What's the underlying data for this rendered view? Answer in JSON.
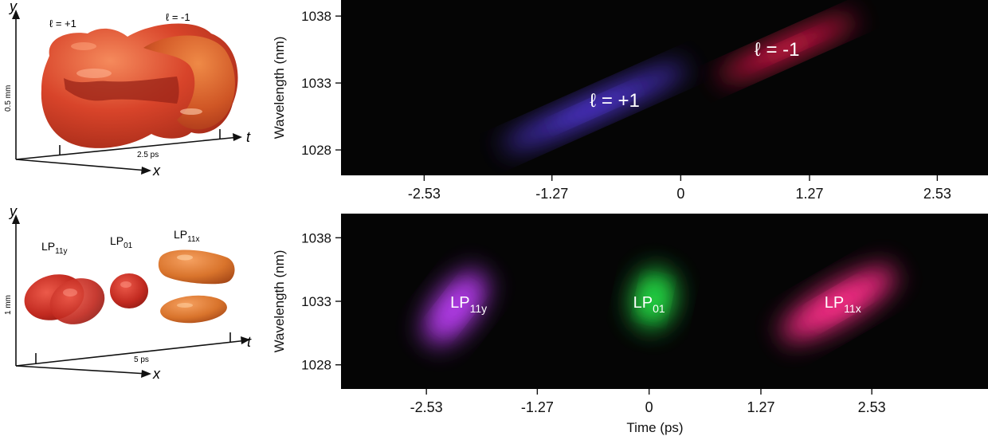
{
  "schematic_top": {
    "axis_y": "y",
    "axis_t": "t",
    "axis_x": "x",
    "mode_plus": "ℓ = +1",
    "mode_minus": "ℓ = -1",
    "scale_vertical": "0.5 mm",
    "scale_time": "2.5 ps",
    "colors": {
      "body": "#d8442a",
      "highlight": "#f07a4a",
      "shadow": "#9c2416"
    }
  },
  "schematic_bottom": {
    "axis_y": "y",
    "axis_t": "t",
    "axis_x": "x",
    "mode_a": {
      "base": "LP",
      "sub": "11y"
    },
    "mode_b": {
      "base": "LP",
      "sub": "01"
    },
    "mode_c": {
      "base": "LP",
      "sub": "11x"
    },
    "scale_vertical": "1 mm",
    "scale_time": "5 ps",
    "colors": {
      "red_blob": "#c22a20",
      "orange_blob": "#d9742c"
    }
  },
  "chart_data": [
    {
      "type": "heatmap",
      "title": "",
      "xlabel": "",
      "ylabel": "Wavelength (nm)",
      "x_ticks": [
        -2.53,
        -1.27,
        0,
        1.27,
        2.53
      ],
      "x_tick_labels": [
        "-2.53",
        "-1.27",
        "0",
        "1.27",
        "2.53"
      ],
      "y_ticks": [
        1028,
        1033,
        1038
      ],
      "y_tick_labels": [
        "1028",
        "1033",
        "1038"
      ],
      "xlim": [
        -3.35,
        3.03
      ],
      "ylim": [
        1026.1,
        1039.2
      ],
      "annotations": [
        {
          "text": "ℓ = +1",
          "x": -0.65,
          "y": 1031.7,
          "color": "#ffffff"
        },
        {
          "text": "ℓ = -1",
          "x": 0.95,
          "y": 1035.5,
          "color": "#ffffff"
        }
      ],
      "blobs": [
        {
          "name": "ℓ = +1",
          "color": "#5a3cf0",
          "center": [
            -0.85,
            1031.2
          ],
          "spread": [
            1.6,
            1.5
          ]
        },
        {
          "name": "ℓ = -1",
          "color": "#ff1f55",
          "center": [
            1.05,
            1035.6
          ],
          "spread": [
            1.2,
            1.3
          ]
        }
      ]
    },
    {
      "type": "heatmap",
      "title": "",
      "xlabel": "Time (ps)",
      "ylabel": "Wavelength (nm)",
      "x_ticks": [
        -2.53,
        -1.27,
        0,
        1.27,
        2.53
      ],
      "x_tick_labels": [
        "-2.53",
        "-1.27",
        "0",
        "1.27",
        "2.53"
      ],
      "y_ticks": [
        1028,
        1033,
        1038
      ],
      "y_tick_labels": [
        "1028",
        "1033",
        "1038"
      ],
      "xlim": [
        -3.5,
        3.85
      ],
      "ylim": [
        1026.1,
        1039.9
      ],
      "annotations": [
        {
          "base": "LP",
          "sub": "11y",
          "x": -2.05,
          "y": 1033.0,
          "color": "#ffffff"
        },
        {
          "base": "LP",
          "sub": "01",
          "x": 0.0,
          "y": 1033.0,
          "color": "#ffffff"
        },
        {
          "base": "LP",
          "sub": "11x",
          "x": 2.2,
          "y": 1033.0,
          "color": "#ffffff"
        }
      ],
      "blobs": [
        {
          "name": "LP11y",
          "color": "#b83cf0",
          "center": [
            -2.2,
            1032.5
          ],
          "spread": [
            0.8,
            3.0
          ]
        },
        {
          "name": "LP01",
          "color": "#28e046",
          "center": [
            0.05,
            1033.2
          ],
          "spread": [
            0.55,
            3.0
          ]
        },
        {
          "name": "LP11x",
          "color": "#ff2f8a",
          "center": [
            2.15,
            1032.8
          ],
          "spread": [
            1.2,
            2.7
          ]
        }
      ]
    }
  ]
}
